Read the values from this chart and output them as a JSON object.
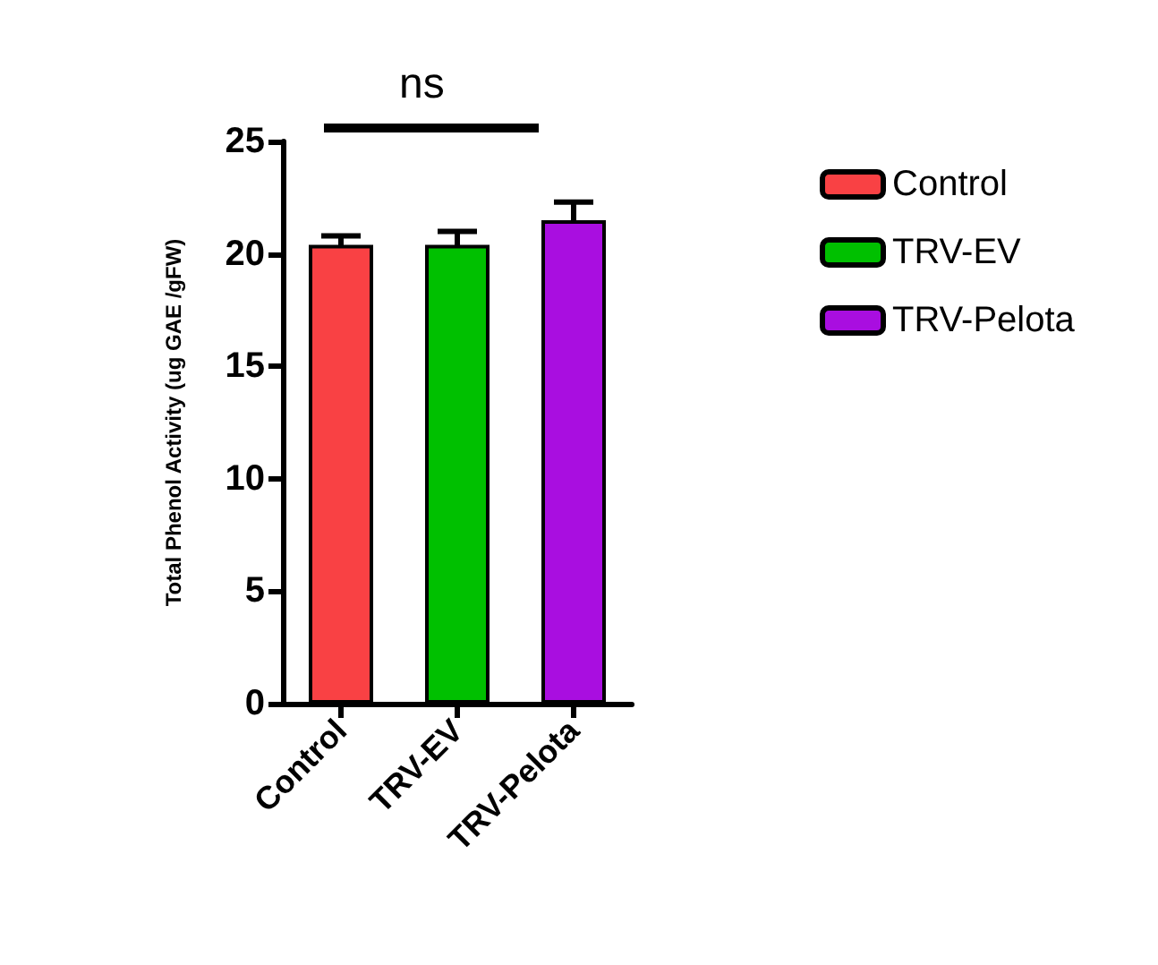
{
  "chart_data": {
    "type": "bar",
    "categories": [
      "Control",
      "TRV-EV",
      "TRV-Pelota"
    ],
    "ylabel": "Total Phenol Activity (ug GAE /gFW)",
    "ylim": [
      0,
      25
    ],
    "yticks": [
      0,
      5,
      10,
      15,
      20,
      25
    ],
    "series": [
      {
        "name": "Control",
        "color": "#f94144",
        "values": [
          20.4,
          null,
          null
        ],
        "errors": [
          0.4,
          null,
          null
        ]
      },
      {
        "name": "TRV-EV",
        "color": "#00c000",
        "values": [
          null,
          20.4,
          null
        ],
        "errors": [
          null,
          0.6,
          null
        ]
      },
      {
        "name": "TRV-Pelota",
        "color": "#a90ee0",
        "values": [
          null,
          null,
          21.5
        ],
        "errors": [
          null,
          null,
          0.8
        ]
      }
    ],
    "annotations": [
      "ns"
    ],
    "legend": "right",
    "grid": false
  }
}
